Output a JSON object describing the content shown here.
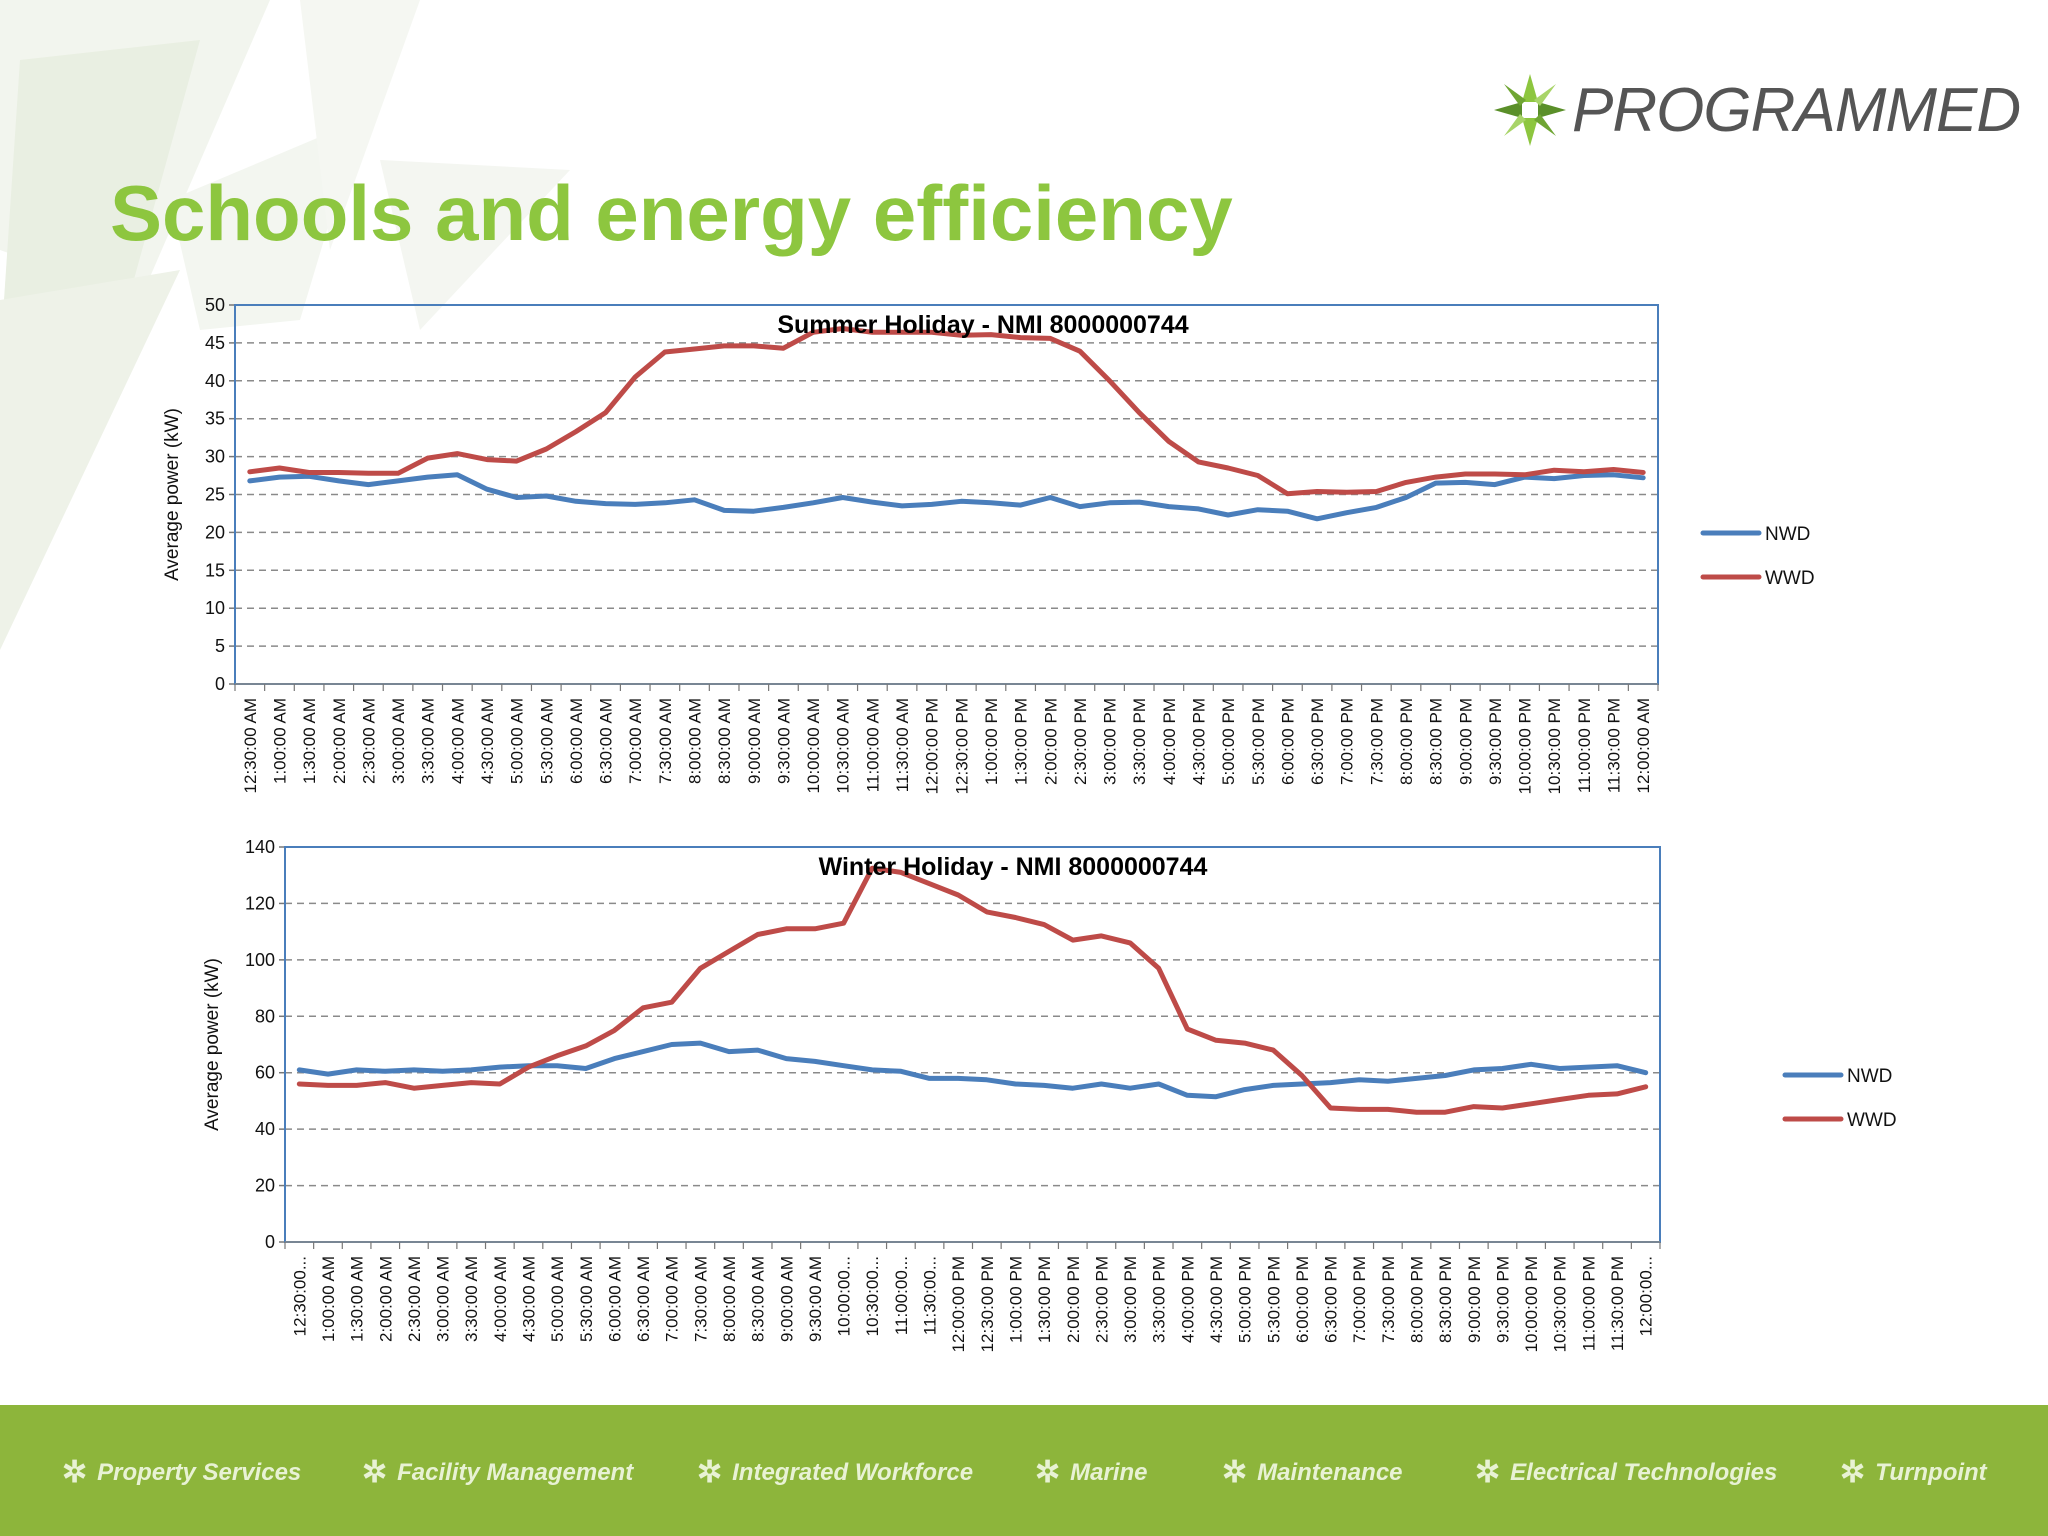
{
  "slide": {
    "title": "Schools and energy efficiency",
    "logo_text": "PROGRAMMED",
    "brand_green": "#8dc63f"
  },
  "footer": {
    "background": "#8db53b",
    "items": [
      {
        "label": "Property Services",
        "icon": "gear-icon"
      },
      {
        "label": "Facility Management",
        "icon": "gear-icon"
      },
      {
        "label": "Integrated Workforce",
        "icon": "gear-icon"
      },
      {
        "label": "Marine",
        "icon": "gear-icon"
      },
      {
        "label": "Maintenance",
        "icon": "gear-icon"
      },
      {
        "label": "Electrical Technologies",
        "icon": "gear-icon"
      },
      {
        "label": "Turnpoint",
        "icon": "gear-icon"
      }
    ]
  },
  "chart_data": [
    {
      "type": "line",
      "title": "Summer Holiday - NMI 8000000744",
      "ylabel": "Average power (kW)",
      "xlabel": "",
      "ylim": [
        0,
        50
      ],
      "yticks": [
        0,
        5,
        10,
        15,
        20,
        25,
        30,
        35,
        40,
        45,
        50
      ],
      "grid": "dashed horizontal",
      "legend_position": "right",
      "x": [
        "12:30:00 AM",
        "1:00:00 AM",
        "1:30:00 AM",
        "2:00:00 AM",
        "2:30:00 AM",
        "3:00:00 AM",
        "3:30:00 AM",
        "4:00:00 AM",
        "4:30:00 AM",
        "5:00:00 AM",
        "5:30:00 AM",
        "6:00:00 AM",
        "6:30:00 AM",
        "7:00:00 AM",
        "7:30:00 AM",
        "8:00:00 AM",
        "8:30:00 AM",
        "9:00:00 AM",
        "9:30:00 AM",
        "10:00:00 AM",
        "10:30:00 AM",
        "11:00:00 AM",
        "11:30:00 AM",
        "12:00:00 PM",
        "12:30:00 PM",
        "1:00:00 PM",
        "1:30:00 PM",
        "2:00:00 PM",
        "2:30:00 PM",
        "3:00:00 PM",
        "3:30:00 PM",
        "4:00:00 PM",
        "4:30:00 PM",
        "5:00:00 PM",
        "5:30:00 PM",
        "6:00:00 PM",
        "6:30:00 PM",
        "7:00:00 PM",
        "7:30:00 PM",
        "8:00:00 PM",
        "8:30:00 PM",
        "9:00:00 PM",
        "9:30:00 PM",
        "10:00:00 PM",
        "10:30:00 PM",
        "11:00:00 PM",
        "11:30:00 PM",
        "12:00:00 AM"
      ],
      "series": [
        {
          "name": "NWD",
          "color": "#4a7ebb",
          "values": [
            26.8,
            27.3,
            27.4,
            26.8,
            26.3,
            26.8,
            27.3,
            27.6,
            25.7,
            24.6,
            24.8,
            24.1,
            23.8,
            23.7,
            23.9,
            24.3,
            22.9,
            22.8,
            23.3,
            23.9,
            24.6,
            24.0,
            23.5,
            23.7,
            24.1,
            23.9,
            23.6,
            24.6,
            23.4,
            23.9,
            24.0,
            23.4,
            23.1,
            22.3,
            23.0,
            22.8,
            21.8,
            22.6,
            23.3,
            24.6,
            26.5,
            26.6,
            26.3,
            27.3,
            27.1,
            27.5,
            27.6,
            27.2
          ]
        },
        {
          "name": "WWD",
          "color": "#be4b48",
          "values": [
            28.0,
            28.5,
            27.9,
            27.9,
            27.8,
            27.8,
            29.8,
            30.4,
            29.6,
            29.4,
            31.0,
            33.3,
            35.8,
            40.5,
            43.8,
            44.2,
            44.6,
            44.6,
            44.3,
            46.4,
            46.9,
            46.4,
            46.4,
            46.4,
            46.0,
            46.1,
            45.7,
            45.6,
            43.9,
            40.0,
            35.8,
            32.0,
            29.3,
            28.5,
            27.5,
            25.1,
            25.4,
            25.3,
            25.4,
            26.6,
            27.3,
            27.7,
            27.7,
            27.6,
            28.2,
            28.0,
            28.3,
            27.9
          ]
        }
      ]
    },
    {
      "type": "line",
      "title": "Winter Holiday - NMI 8000000744",
      "ylabel": "Average power (kW)",
      "xlabel": "",
      "ylim": [
        0,
        140
      ],
      "yticks": [
        0,
        20,
        40,
        60,
        80,
        100,
        120,
        140
      ],
      "grid": "dashed horizontal",
      "legend_position": "right",
      "x": [
        "12:30:00...",
        "1:00:00 AM",
        "1:30:00 AM",
        "2:00:00 AM",
        "2:30:00 AM",
        "3:00:00 AM",
        "3:30:00 AM",
        "4:00:00 AM",
        "4:30:00 AM",
        "5:00:00 AM",
        "5:30:00 AM",
        "6:00:00 AM",
        "6:30:00 AM",
        "7:00:00 AM",
        "7:30:00 AM",
        "8:00:00 AM",
        "8:30:00 AM",
        "9:00:00 AM",
        "9:30:00 AM",
        "10:00:00...",
        "10:30:00...",
        "11:00:00...",
        "11:30:00...",
        "12:00:00 PM",
        "12:30:00 PM",
        "1:00:00 PM",
        "1:30:00 PM",
        "2:00:00 PM",
        "2:30:00 PM",
        "3:00:00 PM",
        "3:30:00 PM",
        "4:00:00 PM",
        "4:30:00 PM",
        "5:00:00 PM",
        "5:30:00 PM",
        "6:00:00 PM",
        "6:30:00 PM",
        "7:00:00 PM",
        "7:30:00 PM",
        "8:00:00 PM",
        "8:30:00 PM",
        "9:00:00 PM",
        "9:30:00 PM",
        "10:00:00 PM",
        "10:30:00 PM",
        "11:00:00 PM",
        "11:30:00 PM",
        "12:00:00..."
      ],
      "series": [
        {
          "name": "NWD",
          "color": "#4a7ebb",
          "values": [
            61,
            59.5,
            61,
            60.5,
            61,
            60.5,
            61,
            62,
            62.5,
            62.5,
            61.5,
            65,
            67.5,
            70,
            70.5,
            67.5,
            68,
            65,
            64,
            62.5,
            61,
            60.5,
            58,
            58,
            57.5,
            56,
            55.5,
            54.5,
            56,
            54.5,
            56,
            52,
            51.5,
            54,
            55.5,
            56,
            56.5,
            57.5,
            57,
            58,
            59,
            61,
            61.5,
            63,
            61.5,
            62,
            62.5,
            60
          ]
        },
        {
          "name": "WWD",
          "color": "#be4b48",
          "values": [
            56,
            55.5,
            55.5,
            56.5,
            54.5,
            55.5,
            56.5,
            56,
            62,
            66,
            69.5,
            75,
            83,
            85,
            97,
            103,
            109,
            111,
            111,
            113,
            132.5,
            131,
            127,
            123,
            117,
            115,
            112.5,
            107,
            108.5,
            106,
            97,
            75.5,
            71.5,
            70.5,
            68,
            59,
            47.5,
            47,
            47,
            46,
            46,
            48,
            47.5,
            49,
            50.5,
            52,
            52.5,
            55
          ]
        }
      ]
    }
  ]
}
